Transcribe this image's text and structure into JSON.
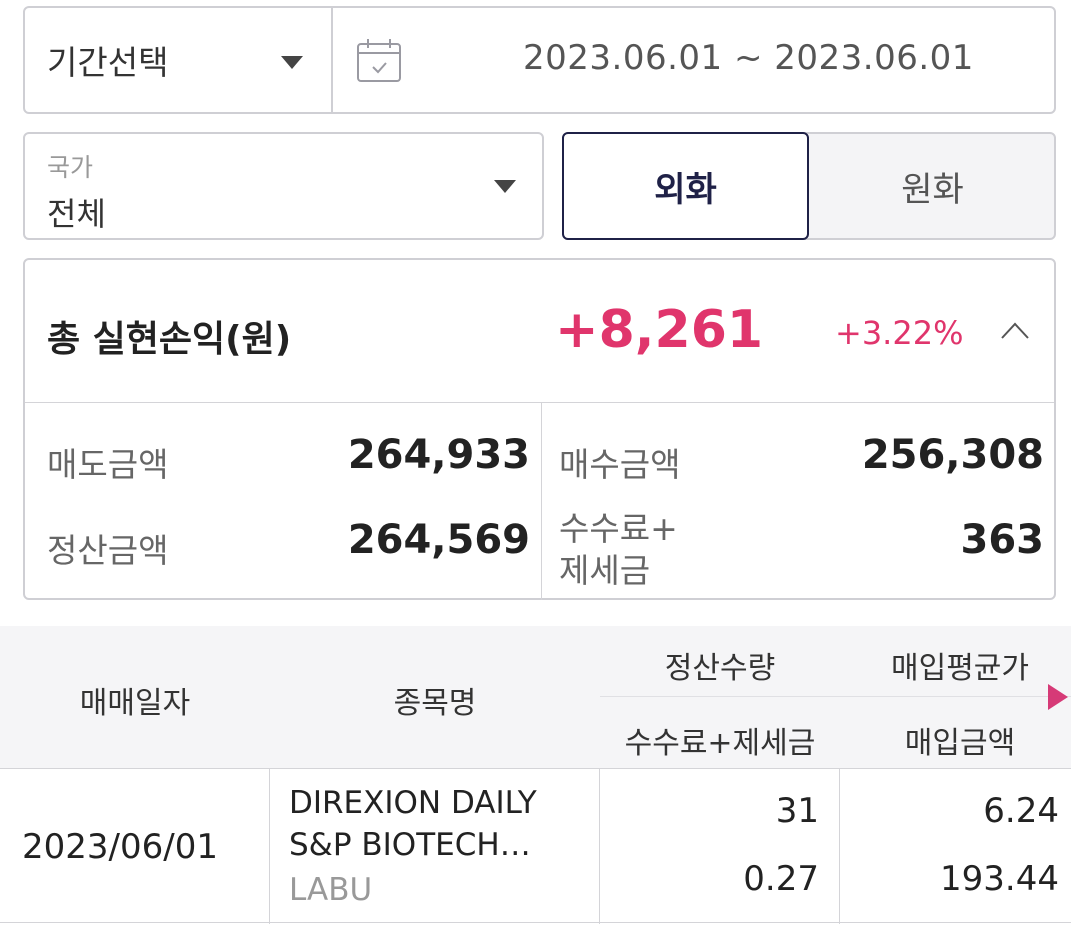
{
  "period": {
    "select_label": "기간선택",
    "date_range": "2023.06.01 ~ 2023.06.01"
  },
  "country": {
    "caption": "국가",
    "value": "전체"
  },
  "currency": {
    "tabs": [
      "외화",
      "원화"
    ],
    "selected": "외화"
  },
  "summary": {
    "title": "총 실현손익(원)",
    "pnl": "+8,261",
    "rate": "+3.22%",
    "sell_amount_label": "매도금액",
    "sell_amount": "264,933",
    "buy_amount_label": "매수금액",
    "buy_amount": "256,308",
    "settle_amount_label": "정산금액",
    "settle_amount": "264,569",
    "fee_tax_label_1": "수수료+",
    "fee_tax_label_2": "제세금",
    "fee_tax": "363",
    "accent_color": "#e0356c"
  },
  "table": {
    "headers": {
      "trade_date": "매매일자",
      "name": "종목명",
      "settle_qty": "정산수량",
      "fee_tax": "수수료+제세금",
      "avg_price": "매입평균가",
      "buy_amount": "매입금액"
    },
    "rows": [
      {
        "trade_date": "2023/06/01",
        "name_line1": "DIREXION DAILY",
        "name_line2": "S&P BIOTECH…",
        "ticker": "LABU",
        "settle_qty": "31",
        "fee_tax": "0.27",
        "avg_price": "6.24",
        "buy_amount": "193.44"
      }
    ]
  },
  "icons": {
    "calendar": "calendar-icon",
    "dropdown": "caret-down-icon",
    "collapse": "chevron-up-icon",
    "scroll": "arrow-right-icon"
  }
}
